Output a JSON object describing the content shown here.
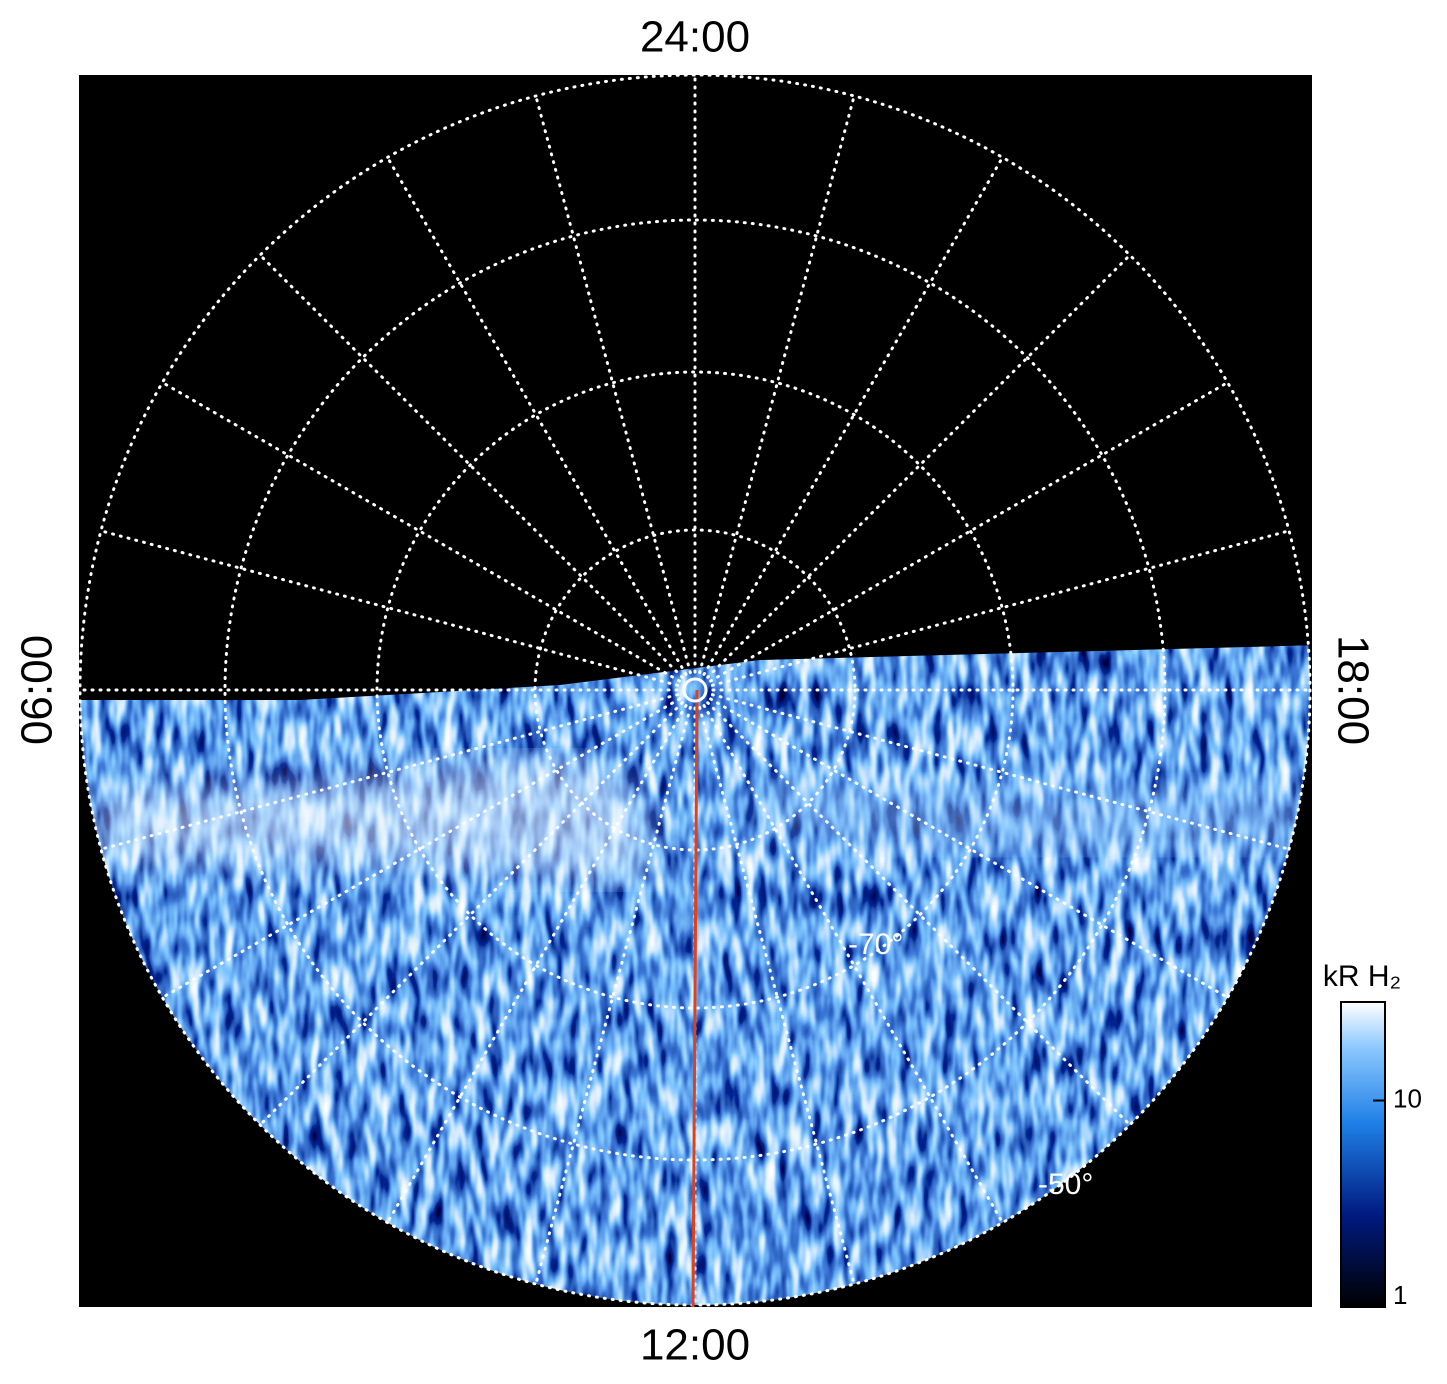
{
  "plot": {
    "time_labels": {
      "top": "24:00",
      "bottom": "12:00",
      "left": "06:00",
      "right": "18:00"
    },
    "latitude_labels": [
      "-70°",
      "-50°"
    ],
    "colorbar": {
      "label": "kR H₂",
      "scale": "log",
      "ylim": [
        1,
        30
      ],
      "yticks": [
        1,
        10
      ]
    }
  }
}
